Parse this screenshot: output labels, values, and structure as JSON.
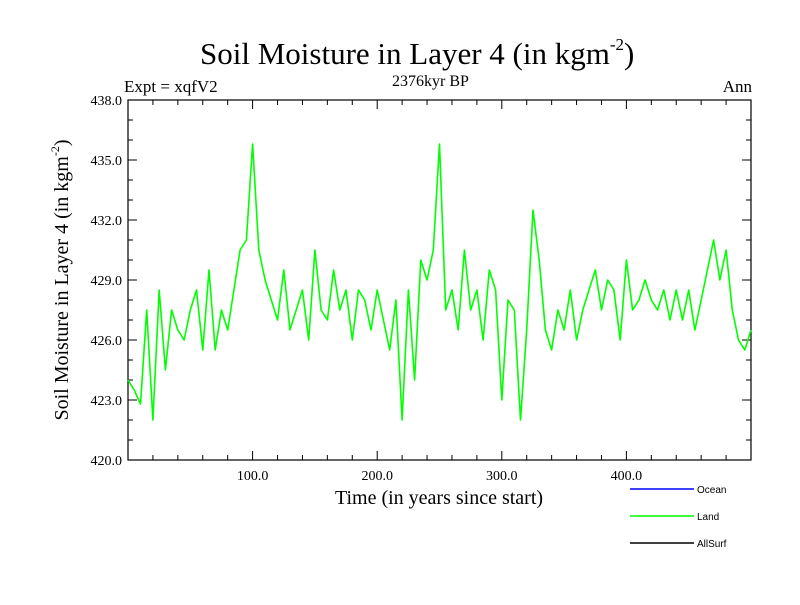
{
  "chart_data": {
    "type": "line",
    "title_main": "Soil Moisture in Layer 4 (in kgm",
    "title_sup": "-2",
    "title_close": ")",
    "subtitle": "2376kyr BP",
    "left_label": "Expt = xqfV2",
    "right_label": "Ann",
    "xlabel": "Time (in years since start)",
    "ylabel_main": "Soil Moisture in Layer 4 (in kgm",
    "ylabel_sup": "-2",
    "ylabel_close": ")",
    "xlim": [
      0,
      500
    ],
    "ylim": [
      420,
      438
    ],
    "x_ticks": [
      100,
      200,
      300,
      400
    ],
    "x_tick_labels": [
      "100.0",
      "200.0",
      "300.0",
      "400.0"
    ],
    "y_ticks": [
      420,
      423,
      426,
      429,
      432,
      435,
      438
    ],
    "y_tick_labels": [
      "420.0",
      "423.0",
      "426.0",
      "429.0",
      "432.0",
      "435.0",
      "438.0"
    ],
    "legend": [
      {
        "name": "Ocean",
        "color": "#0000ff"
      },
      {
        "name": "Land",
        "color": "#00ff00"
      },
      {
        "name": "AllSurf",
        "color": "#000000"
      }
    ],
    "series": [
      {
        "name": "Land",
        "color": "#00ff00",
        "x": [
          0,
          5,
          10,
          15,
          20,
          25,
          30,
          35,
          40,
          45,
          50,
          55,
          60,
          65,
          70,
          75,
          80,
          85,
          90,
          95,
          100,
          105,
          110,
          115,
          120,
          125,
          130,
          135,
          140,
          145,
          150,
          155,
          160,
          165,
          170,
          175,
          180,
          185,
          190,
          195,
          200,
          205,
          210,
          215,
          220,
          225,
          230,
          235,
          240,
          245,
          250,
          255,
          260,
          265,
          270,
          275,
          280,
          285,
          290,
          295,
          300,
          305,
          310,
          315,
          320,
          325,
          330,
          335,
          340,
          345,
          350,
          355,
          360,
          365,
          370,
          375,
          380,
          385,
          390,
          395,
          400,
          405,
          410,
          415,
          420,
          425,
          430,
          435,
          440,
          445,
          450,
          455,
          460,
          465,
          470,
          475,
          480,
          485,
          490,
          495,
          500
        ],
        "values": [
          424.0,
          423.5,
          422.8,
          427.5,
          422.0,
          428.5,
          424.5,
          427.5,
          426.5,
          426.0,
          427.5,
          428.5,
          425.5,
          429.5,
          425.5,
          427.5,
          426.5,
          428.5,
          430.5,
          431.0,
          435.8,
          430.5,
          429.0,
          428.0,
          427.0,
          429.5,
          426.5,
          427.5,
          428.5,
          426.0,
          430.5,
          427.5,
          427.0,
          429.5,
          427.5,
          428.5,
          426.0,
          428.5,
          428.0,
          426.5,
          428.5,
          427.0,
          425.5,
          428.0,
          422.0,
          428.5,
          424.0,
          430.0,
          429.0,
          430.5,
          435.8,
          427.5,
          428.5,
          426.5,
          430.5,
          427.5,
          428.5,
          426.0,
          429.5,
          428.5,
          423.0,
          428.0,
          427.5,
          422.0,
          426.5,
          432.5,
          430.0,
          426.5,
          425.5,
          427.5,
          426.5,
          428.5,
          426.0,
          427.5,
          428.5,
          429.5,
          427.5,
          429.0,
          428.5,
          426.0,
          430.0,
          427.5,
          428.0,
          429.0,
          428.0,
          427.5,
          428.5,
          427.0,
          428.5,
          427.0,
          428.5,
          426.5,
          428.0,
          429.5,
          431.0,
          429.0,
          430.5,
          427.5,
          426.0,
          425.5,
          426.5
        ]
      }
    ]
  }
}
